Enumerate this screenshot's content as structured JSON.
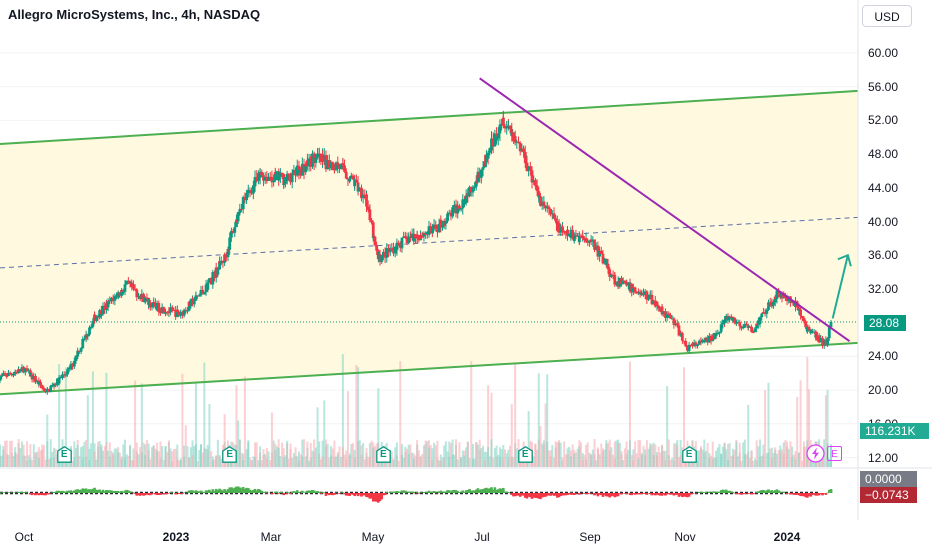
{
  "title": "Allegro MicroSystems, Inc., 4h, NASDAQ",
  "currency_button": "USD",
  "price_tag": "28.08",
  "volume_tag": "116.231K",
  "osc_zero_tag": "0.0000",
  "osc_value_tag": "−0.0743",
  "event_label": "E",
  "earnings_label": "E",
  "colors": {
    "up": "#089981",
    "down": "#f23645",
    "channel_fill": "#fff9e0",
    "channel_line": "#4caf50",
    "trendline": "#9c27b0",
    "midline": "#5b6fa8",
    "arrow": "#22ab94",
    "price_tag": "#089981",
    "volume_tag": "#22ab94",
    "osc_zero_tag": "#787b86",
    "osc_value_tag": "#b22833"
  },
  "chart_data": {
    "type": "candlestick",
    "title": "Allegro MicroSystems, Inc., 4h, NASDAQ",
    "y_axis": {
      "ticks": [
        "60.00",
        "56.00",
        "52.00",
        "48.00",
        "44.00",
        "40.00",
        "36.00",
        "32.00",
        "28.00",
        "24.00",
        "20.00",
        "16.00",
        "12.00"
      ],
      "range": [
        11.0,
        61.5
      ]
    },
    "x_axis": {
      "labels": [
        {
          "text": "Oct",
          "bold": false
        },
        {
          "text": "2023",
          "bold": true
        },
        {
          "text": "Mar",
          "bold": false
        },
        {
          "text": "May",
          "bold": false
        },
        {
          "text": "Jul",
          "bold": false
        },
        {
          "text": "Sep",
          "bold": false
        },
        {
          "text": "Nov",
          "bold": false
        },
        {
          "text": "2024",
          "bold": true
        }
      ],
      "date_range": [
        "2022-09-20",
        "2024-02-10"
      ]
    },
    "price_path": [
      {
        "date": "2022-09-20",
        "close": 21.5
      },
      {
        "date": "2022-10-05",
        "close": 22.5
      },
      {
        "date": "2022-10-18",
        "close": 19.8
      },
      {
        "date": "2022-11-01",
        "close": 22.5
      },
      {
        "date": "2022-11-15",
        "close": 28.5
      },
      {
        "date": "2022-12-05",
        "close": 32.5
      },
      {
        "date": "2022-12-20",
        "close": 30.0
      },
      {
        "date": "2023-01-05",
        "close": 29.0
      },
      {
        "date": "2023-01-20",
        "close": 32.0
      },
      {
        "date": "2023-02-01",
        "close": 36.0
      },
      {
        "date": "2023-02-10",
        "close": 42.0
      },
      {
        "date": "2023-02-22",
        "close": 45.5
      },
      {
        "date": "2023-03-10",
        "close": 45.0
      },
      {
        "date": "2023-03-25",
        "close": 47.5
      },
      {
        "date": "2023-04-10",
        "close": 46.5
      },
      {
        "date": "2023-04-25",
        "close": 43.0
      },
      {
        "date": "2023-05-02",
        "close": 35.5
      },
      {
        "date": "2023-05-20",
        "close": 38.0
      },
      {
        "date": "2023-06-05",
        "close": 39.0
      },
      {
        "date": "2023-06-20",
        "close": 42.0
      },
      {
        "date": "2023-07-05",
        "close": 47.0
      },
      {
        "date": "2023-07-15",
        "close": 52.5
      },
      {
        "date": "2023-07-28",
        "close": 48.0
      },
      {
        "date": "2023-08-05",
        "close": 43.0
      },
      {
        "date": "2023-08-20",
        "close": 38.5
      },
      {
        "date": "2023-09-05",
        "close": 38.0
      },
      {
        "date": "2023-09-20",
        "close": 33.0
      },
      {
        "date": "2023-10-10",
        "close": 31.0
      },
      {
        "date": "2023-10-25",
        "close": 28.0
      },
      {
        "date": "2023-11-01",
        "close": 25.0
      },
      {
        "date": "2023-11-15",
        "close": 26.0
      },
      {
        "date": "2023-11-25",
        "close": 28.5
      },
      {
        "date": "2023-12-10",
        "close": 27.0
      },
      {
        "date": "2023-12-25",
        "close": 31.5
      },
      {
        "date": "2024-01-05",
        "close": 30.0
      },
      {
        "date": "2024-01-12",
        "close": 27.0
      },
      {
        "date": "2024-01-22",
        "close": 25.5
      },
      {
        "date": "2024-01-26",
        "close": 28.08
      }
    ],
    "last_price": 28.08,
    "channel": {
      "upper": [
        {
          "date": "2022-09-20",
          "value": 49.2
        },
        {
          "date": "2024-02-10",
          "value": 55.5
        }
      ],
      "middle": [
        {
          "date": "2022-09-20",
          "value": 34.5
        },
        {
          "date": "2024-02-10",
          "value": 40.5
        }
      ],
      "lower": [
        {
          "date": "2022-09-20",
          "value": 19.5
        },
        {
          "date": "2024-02-10",
          "value": 25.6
        }
      ]
    },
    "trendline": [
      {
        "date": "2023-07-01",
        "value": 57.0
      },
      {
        "date": "2024-02-05",
        "value": 25.8
      }
    ],
    "projection_arrow": [
      {
        "date": "2024-01-26",
        "value": 28.5
      },
      {
        "date": "2024-02-04",
        "value": 36.0
      }
    ],
    "events": [
      {
        "date": "2022-10-28",
        "label": "E"
      },
      {
        "date": "2023-02-03",
        "label": "E"
      },
      {
        "date": "2023-05-05",
        "label": "E"
      },
      {
        "date": "2023-07-28",
        "label": "E"
      },
      {
        "date": "2023-11-02",
        "label": "E"
      }
    ],
    "volume_last": "116.231K",
    "oscillator": {
      "zero": 0.0,
      "last": -0.0743
    }
  }
}
